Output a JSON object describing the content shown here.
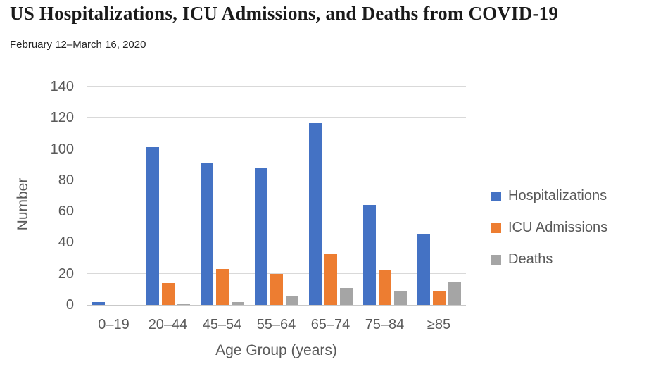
{
  "page": {
    "title": "US Hospitalizations, ICU Admissions, and Deaths from COVID-19",
    "subtitle": "February 12–March 16, 2020"
  },
  "chart_data": {
    "type": "bar",
    "title": "US Hospitalizations, ICU Admissions, and Deaths from COVID-19",
    "subtitle": "February 12–March 16, 2020",
    "categories": [
      "0–19",
      "20–44",
      "45–54",
      "55–64",
      "65–74",
      "75–84",
      "≥85"
    ],
    "series": [
      {
        "name": "Hospitalizations",
        "color": "#4472C4",
        "values": [
          2,
          101,
          91,
          88,
          117,
          64,
          45
        ]
      },
      {
        "name": "ICU Admissions",
        "color": "#ED7D31",
        "values": [
          0,
          14,
          23,
          20,
          33,
          22,
          9
        ]
      },
      {
        "name": "Deaths",
        "color": "#A5A5A5",
        "values": [
          0,
          1,
          2,
          6,
          11,
          9,
          15
        ]
      }
    ],
    "xlabel": "Age Group (years)",
    "ylabel": "Number",
    "ylim": [
      0,
      140
    ],
    "ytick_step": 20,
    "grid": true,
    "legend_position": "right"
  },
  "colors": {
    "gridline": "#d9d9d9",
    "axis_line": "#c9c9c9",
    "tick_text": "#595959",
    "title_text": "#1a1a1a"
  }
}
